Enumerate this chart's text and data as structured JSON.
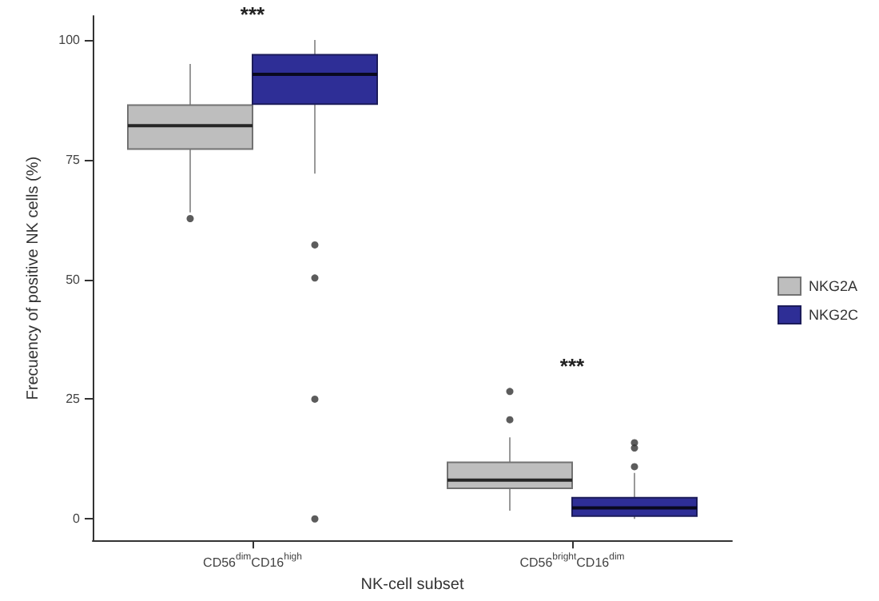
{
  "chart_data": {
    "type": "box",
    "xlabel": "NK-cell subset",
    "ylabel": "Frecuency of positive NK cells (%)",
    "categories": [
      "CD56$^{dim}$CD16$^{high}$",
      "CD56$^{bright}$CD16$^{dim}$"
    ],
    "ylim": [
      -4.5,
      105
    ],
    "yticks": [
      0,
      25,
      50,
      75,
      100
    ],
    "grid": false,
    "legend": "right",
    "series": [
      {
        "name": "NKG2A",
        "color": "#bebebe",
        "boxes": [
          {
            "low": 64,
            "q1": 77.2,
            "median": 82.1,
            "q3": 86.4,
            "high": 95,
            "outliers": [
              62.7
            ]
          },
          {
            "low": 1.7,
            "q1": 6.4,
            "median": 8.1,
            "q3": 11.8,
            "high": 17,
            "outliers": [
              20.7,
              26.6
            ]
          }
        ]
      },
      {
        "name": "NKG2C",
        "color": "#2e2e96",
        "boxes": [
          {
            "low": 72.1,
            "q1": 86.6,
            "median": 92.8,
            "q3": 96.9,
            "high": 100,
            "outliers": [
              57.2,
              50.3,
              25,
              0
            ]
          },
          {
            "low": 0,
            "q1": 0.6,
            "median": 2.3,
            "q3": 4.4,
            "high": 9.6,
            "outliers": [
              10.9,
              14.8,
              15.9
            ]
          }
        ]
      }
    ],
    "annotations": [
      "***",
      "***"
    ]
  }
}
